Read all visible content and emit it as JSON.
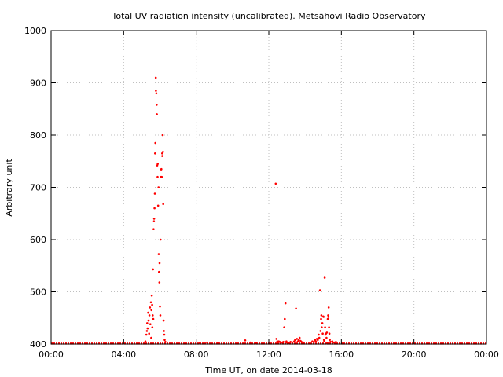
{
  "chart_data": {
    "type": "scatter",
    "title": "Total UV radiation intensity (uncalibrated). Metsähovi Radio Observatory",
    "xlabel": "Time UT, on date 2014-03-18",
    "ylabel": "Arbitrary unit",
    "xlim": [
      0,
      24
    ],
    "ylim": [
      400,
      1000
    ],
    "x_ticks": [
      0,
      4,
      8,
      12,
      16,
      20,
      24
    ],
    "x_tick_labels": [
      "00:00",
      "04:00",
      "08:00",
      "12:00",
      "16:00",
      "20:00",
      "00:00"
    ],
    "y_ticks": [
      400,
      500,
      600,
      700,
      800,
      900,
      1000
    ],
    "y_tick_labels": [
      "400",
      "500",
      "600",
      "700",
      "800",
      "900",
      "1000"
    ],
    "grid": true,
    "marker_color": "#ff0000",
    "baseline": 401,
    "series": [
      {
        "points": [
          [
            5.2,
            405
          ],
          [
            5.25,
            418
          ],
          [
            5.28,
            425
          ],
          [
            5.3,
            440
          ],
          [
            5.32,
            430
          ],
          [
            5.35,
            460
          ],
          [
            5.37,
            445
          ],
          [
            5.4,
            420
          ],
          [
            5.42,
            455
          ],
          [
            5.45,
            470
          ],
          [
            5.47,
            438
          ],
          [
            5.5,
            480
          ],
          [
            5.52,
            412
          ],
          [
            5.53,
            465
          ],
          [
            5.55,
            493
          ],
          [
            5.57,
            475
          ],
          [
            5.58,
            432
          ],
          [
            5.6,
            455
          ],
          [
            5.62,
            543
          ],
          [
            5.63,
            448
          ],
          [
            5.65,
            620
          ],
          [
            5.67,
            635
          ],
          [
            5.68,
            640
          ],
          [
            5.7,
            660
          ],
          [
            5.72,
            688
          ],
          [
            5.73,
            765
          ],
          [
            5.75,
            785
          ],
          [
            5.77,
            910
          ],
          [
            5.78,
            885
          ],
          [
            5.8,
            880
          ],
          [
            5.82,
            858
          ],
          [
            5.83,
            840
          ],
          [
            5.85,
            742
          ],
          [
            5.87,
            720
          ],
          [
            5.88,
            745
          ],
          [
            5.9,
            665
          ],
          [
            5.92,
            700
          ],
          [
            5.93,
            572
          ],
          [
            5.95,
            538
          ],
          [
            5.97,
            518
          ],
          [
            5.98,
            555
          ],
          [
            6.0,
            472
          ],
          [
            6.02,
            455
          ],
          [
            6.03,
            600
          ],
          [
            6.05,
            720
          ],
          [
            6.07,
            733
          ],
          [
            6.08,
            735
          ],
          [
            6.1,
            720
          ],
          [
            6.12,
            765
          ],
          [
            6.13,
            760
          ],
          [
            6.15,
            800
          ],
          [
            6.17,
            768
          ],
          [
            6.18,
            668
          ],
          [
            6.2,
            445
          ],
          [
            6.22,
            425
          ],
          [
            6.24,
            418
          ],
          [
            6.26,
            408
          ],
          [
            6.3,
            404
          ],
          [
            8.2,
            402
          ],
          [
            8.6,
            403
          ],
          [
            9.2,
            402
          ],
          [
            10.7,
            407
          ],
          [
            11.0,
            403
          ],
          [
            11.3,
            402
          ],
          [
            12.38,
            707
          ],
          [
            12.42,
            410
          ],
          [
            12.47,
            405
          ],
          [
            12.5,
            403
          ],
          [
            12.55,
            405
          ],
          [
            12.6,
            404
          ],
          [
            12.65,
            402
          ],
          [
            12.75,
            403
          ],
          [
            12.8,
            404
          ],
          [
            12.85,
            432
          ],
          [
            12.88,
            448
          ],
          [
            12.92,
            478
          ],
          [
            12.97,
            405
          ],
          [
            13.0,
            403
          ],
          [
            13.1,
            402
          ],
          [
            13.2,
            404
          ],
          [
            13.3,
            403
          ],
          [
            13.4,
            405
          ],
          [
            13.45,
            408
          ],
          [
            13.5,
            468
          ],
          [
            13.55,
            410
          ],
          [
            13.6,
            405
          ],
          [
            13.65,
            408
          ],
          [
            13.7,
            412
          ],
          [
            13.75,
            406
          ],
          [
            13.8,
            404
          ],
          [
            13.9,
            403
          ],
          [
            14.4,
            405
          ],
          [
            14.5,
            404
          ],
          [
            14.55,
            408
          ],
          [
            14.6,
            405
          ],
          [
            14.65,
            410
          ],
          [
            14.7,
            408
          ],
          [
            14.75,
            418
          ],
          [
            14.78,
            412
          ],
          [
            14.82,
            503
          ],
          [
            14.85,
            425
          ],
          [
            14.88,
            448
          ],
          [
            14.9,
            455
          ],
          [
            14.92,
            432
          ],
          [
            14.95,
            440
          ],
          [
            14.97,
            420
          ],
          [
            15.0,
            453
          ],
          [
            15.02,
            452
          ],
          [
            15.04,
            408
          ],
          [
            15.06,
            405
          ],
          [
            15.08,
            527
          ],
          [
            15.1,
            432
          ],
          [
            15.12,
            418
          ],
          [
            15.15,
            420
          ],
          [
            15.18,
            412
          ],
          [
            15.2,
            422
          ],
          [
            15.22,
            402
          ],
          [
            15.25,
            448
          ],
          [
            15.27,
            455
          ],
          [
            15.29,
            452
          ],
          [
            15.3,
            470
          ],
          [
            15.32,
            432
          ],
          [
            15.34,
            420
          ],
          [
            15.36,
            408
          ],
          [
            15.4,
            404
          ],
          [
            15.5,
            405
          ],
          [
            15.6,
            403
          ],
          [
            15.7,
            404
          ]
        ]
      }
    ]
  }
}
